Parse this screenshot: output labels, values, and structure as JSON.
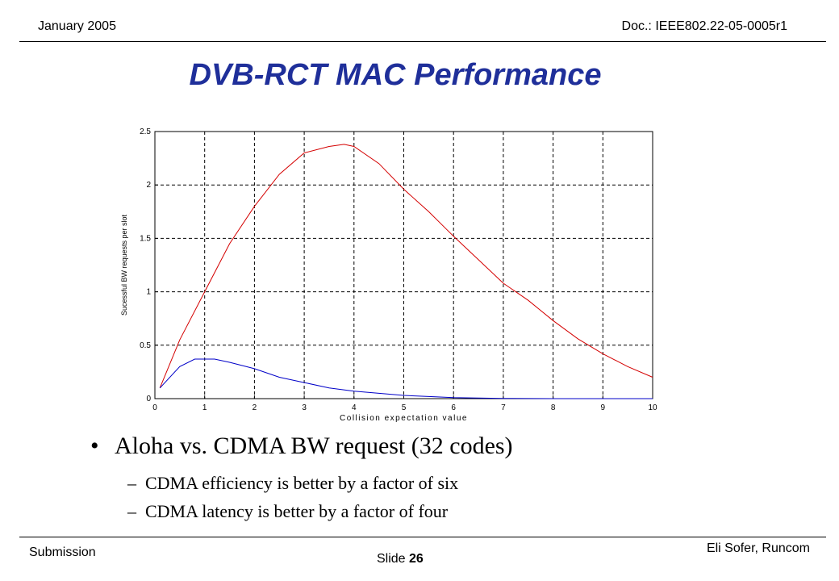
{
  "header": {
    "date": "January 2005",
    "doc": "Doc.: IEEE802.22-05-0005r1"
  },
  "title": "DVB-RCT MAC Performance",
  "bullet": {
    "mark": "•",
    "text": "Aloha vs. CDMA BW request (32 codes)"
  },
  "subbullets": [
    {
      "mark": "–",
      "text": "CDMA efficiency is better by a factor of six"
    },
    {
      "mark": "–",
      "text": "CDMA latency is better by a factor of four"
    }
  ],
  "footer": {
    "left": "Submission",
    "slide_label": "Slide",
    "slide_number": "26",
    "author": "Eli Sofer, Runcom"
  },
  "colors": {
    "title": "#1f2f9a",
    "series_red": "#d40000",
    "series_blue": "#0000c8"
  },
  "chart_data": {
    "type": "line",
    "xlabel": "Collision expectation value",
    "ylabel": "Sucessful BW requests per slot",
    "xlim": [
      0,
      10
    ],
    "ylim": [
      0,
      2.5
    ],
    "xticks": [
      "0",
      "1",
      "2",
      "3",
      "4",
      "5",
      "6",
      "7",
      "8",
      "9",
      "10"
    ],
    "yticks": [
      "0",
      "0.5",
      "1",
      "1.5",
      "2",
      "2.5"
    ],
    "grid": true,
    "series": [
      {
        "color": "red",
        "x": [
          0.1,
          0.5,
          1.0,
          1.5,
          2.0,
          2.5,
          3.0,
          3.5,
          3.8,
          4.0,
          4.5,
          5.0,
          5.5,
          6.0,
          6.5,
          7.0,
          7.5,
          8.0,
          8.5,
          9.0,
          9.5,
          10.0
        ],
        "y": [
          0.1,
          0.55,
          1.0,
          1.45,
          1.8,
          2.1,
          2.3,
          2.36,
          2.38,
          2.36,
          2.2,
          1.96,
          1.75,
          1.52,
          1.3,
          1.08,
          0.92,
          0.73,
          0.56,
          0.42,
          0.3,
          0.2
        ]
      },
      {
        "color": "blue",
        "x": [
          0.1,
          0.5,
          0.8,
          1.0,
          1.2,
          1.5,
          2.0,
          2.5,
          3.0,
          3.5,
          4.0,
          4.5,
          5.0,
          5.5,
          6.0,
          6.5,
          7.0,
          8.0,
          9.0,
          10.0
        ],
        "y": [
          0.1,
          0.3,
          0.37,
          0.37,
          0.37,
          0.34,
          0.28,
          0.2,
          0.15,
          0.1,
          0.07,
          0.05,
          0.03,
          0.02,
          0.01,
          0.005,
          0.002,
          0.0,
          0.0,
          0.0
        ]
      }
    ]
  }
}
